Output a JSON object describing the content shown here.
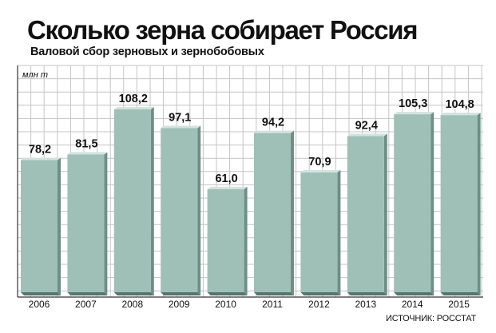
{
  "chart_data": {
    "type": "bar",
    "title": "Сколько зерна собирает Россия",
    "subtitle": "Валовой сбор зерновых и зернобобовых",
    "ylabel": "млн т",
    "categories": [
      "2006",
      "2007",
      "2008",
      "2009",
      "2010",
      "2011",
      "2012",
      "2013",
      "2014",
      "2015"
    ],
    "values": [
      78.2,
      81.5,
      108.2,
      97.1,
      61.0,
      94.2,
      70.9,
      92.4,
      105.3,
      104.8
    ],
    "value_labels": [
      "78,2",
      "81,5",
      "108,2",
      "97,1",
      "61,0",
      "94,2",
      "70,9",
      "92,4",
      "105,3",
      "104,8"
    ],
    "ylim": [
      0,
      120
    ],
    "grid": true,
    "legend": "none",
    "source": "ИСТОЧНИК: РОССТАТ",
    "colors": {
      "bar_face": "#9fc0b7",
      "bar_top": "#d2e3de",
      "bar_side": "#6d8f85",
      "bar_shadow": "#55756b",
      "grid": "#c4c4c4",
      "text": "#111111"
    }
  }
}
